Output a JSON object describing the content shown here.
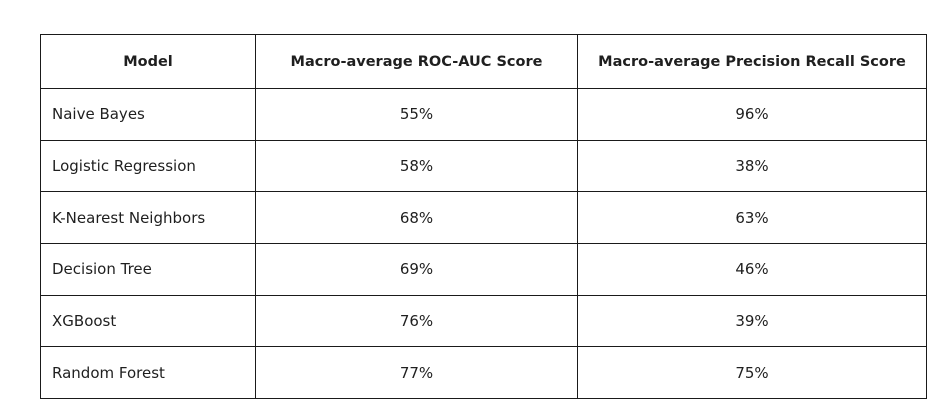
{
  "table": {
    "headers": [
      "Model",
      "Macro-average ROC-AUC Score",
      "Macro-average Precision Recall Score"
    ],
    "rows": [
      {
        "model": "Naive Bayes",
        "roc_auc": "55%",
        "pr_score": "96%"
      },
      {
        "model": "Logistic Regression",
        "roc_auc": "58%",
        "pr_score": "38%"
      },
      {
        "model": "K-Nearest Neighbors",
        "roc_auc": "68%",
        "pr_score": "63%"
      },
      {
        "model": "Decision Tree",
        "roc_auc": "69%",
        "pr_score": "46%"
      },
      {
        "model": "XGBoost",
        "roc_auc": "76%",
        "pr_score": "39%"
      },
      {
        "model": "Random Forest",
        "roc_auc": "77%",
        "pr_score": "75%"
      }
    ]
  }
}
